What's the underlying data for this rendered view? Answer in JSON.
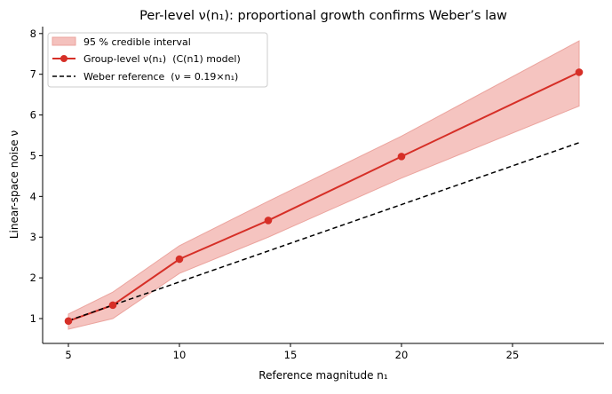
{
  "chart_data": {
    "type": "line",
    "title": "Per-level ν(n₁): proportional growth confirms Weber’s law",
    "xlabel": "Reference magnitude  n₁",
    "ylabel": "Linear-space noise  ν",
    "xlim": [
      3.84,
      29.12
    ],
    "ylim": [
      0.39,
      8.17
    ],
    "xticks": [
      5,
      10,
      15,
      20,
      25
    ],
    "yticks": [
      1,
      2,
      3,
      4,
      5,
      6,
      7,
      8
    ],
    "grid": false,
    "legend_position": "top-left",
    "series": [
      {
        "name": "95 % credible interval",
        "kind": "band",
        "color": "#f4c1bd",
        "x": [
          5,
          7,
          10,
          14,
          20,
          28
        ],
        "lower": [
          0.74,
          1.0,
          2.11,
          3.0,
          4.45,
          6.22
        ],
        "upper": [
          1.11,
          1.65,
          2.79,
          3.88,
          5.48,
          7.82
        ]
      },
      {
        "name": "Group-level ν(n₁)  (C(n1) model)",
        "kind": "line-marker",
        "color": "#d62f27",
        "x": [
          5,
          7,
          10,
          14,
          20,
          28
        ],
        "y": [
          0.94,
          1.33,
          2.46,
          3.41,
          4.98,
          7.05
        ]
      },
      {
        "name": "Weber reference  (ν = 0.19×n₁)",
        "kind": "dashed",
        "color": "#000000",
        "x": [
          5,
          28
        ],
        "y": [
          0.95,
          5.32
        ]
      }
    ]
  }
}
